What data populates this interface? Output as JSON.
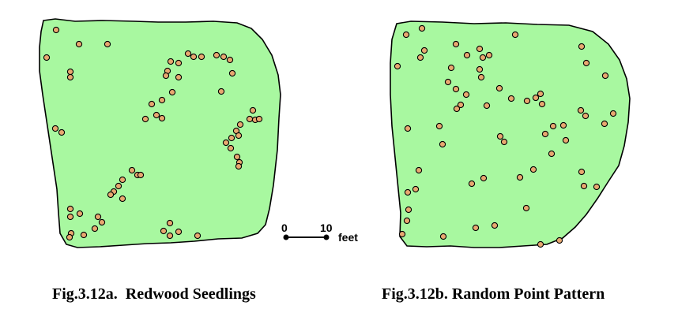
{
  "figure_a": {
    "caption": "Fig.3.12a.  Redwood Seedlings"
  },
  "figure_b": {
    "caption": "Fig.3.12b. Random Point Pattern"
  },
  "scale_bar": {
    "start_label": "0",
    "end_label": "10",
    "unit": "feet"
  },
  "colors": {
    "region_fill": "#a8f8a0",
    "region_stroke": "#000000",
    "point_fill": "#e8a870",
    "point_stroke": "#000000"
  }
}
